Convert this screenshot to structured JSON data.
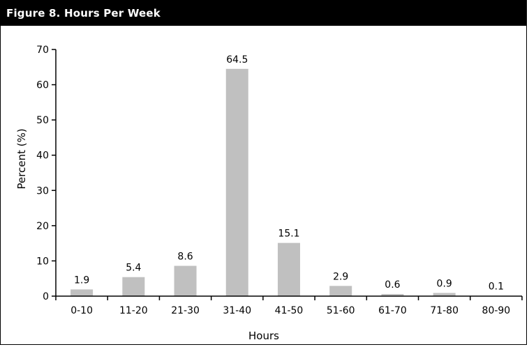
{
  "header": {
    "title": "Figure 8. Hours Per Week",
    "background": "#000000",
    "text_color": "#ffffff"
  },
  "chart_data": {
    "type": "bar",
    "title": "Figure 8. Hours Per Week",
    "xlabel": "Hours",
    "ylabel": "Percent (%)",
    "categories": [
      "0-10",
      "11-20",
      "21-30",
      "31-40",
      "41-50",
      "51-60",
      "61-70",
      "71-80",
      "80-90"
    ],
    "values": [
      1.9,
      5.4,
      8.6,
      64.5,
      15.1,
      2.9,
      0.6,
      0.9,
      0.1
    ],
    "data_labels": [
      "1.9",
      "5.4",
      "8.6",
      "64.5",
      "15.1",
      "2.9",
      "0.6",
      "0.9",
      "0.1"
    ],
    "ylim": [
      0,
      70
    ],
    "yticks": [
      0,
      10,
      20,
      30,
      40,
      50,
      60,
      70
    ],
    "grid": false,
    "legend": "none",
    "bar_color": "#c0c0c0"
  }
}
